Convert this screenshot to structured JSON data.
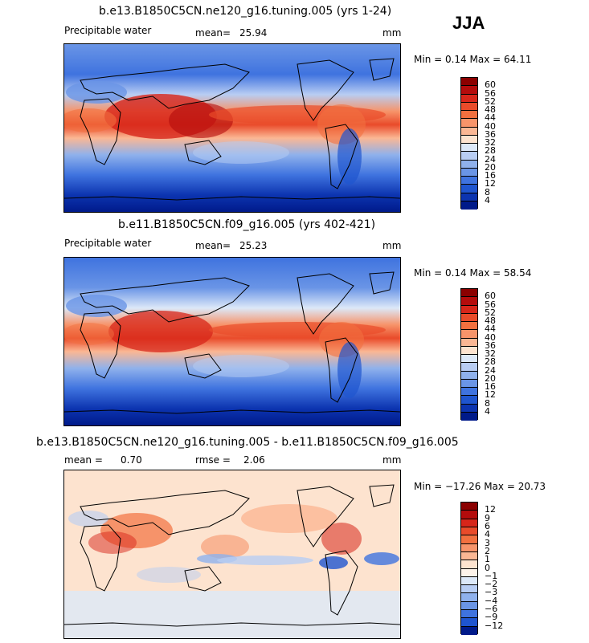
{
  "season": "JJA",
  "panels": [
    {
      "title": "b.e13.B1850C5CN.ne120_g16.tuning.005 (yrs 1-24)",
      "variable": "Precipitable water",
      "mean_label": "mean=",
      "mean_value": "25.94",
      "units": "mm",
      "minmax": "Min =    0.14  Max =   64.11",
      "colorbar_labels": [
        "60",
        "56",
        "52",
        "48",
        "44",
        "40",
        "36",
        "32",
        "28",
        "24",
        "20",
        "16",
        "12",
        "8",
        "4"
      ]
    },
    {
      "title": "b.e11.B1850C5CN.f09_g16.005 (yrs 402-421)",
      "variable": "Precipitable water",
      "mean_label": "mean=",
      "mean_value": "25.23",
      "units": "mm",
      "minmax": "Min =    0.14  Max =   58.54",
      "colorbar_labels": [
        "60",
        "56",
        "52",
        "48",
        "44",
        "40",
        "36",
        "32",
        "28",
        "24",
        "20",
        "16",
        "12",
        "8",
        "4"
      ]
    },
    {
      "title": "b.e13.B1850C5CN.ne120_g16.tuning.005 - b.e11.B1850C5CN.f09_g16.005",
      "mean_label": "mean =",
      "mean_value": "0.70",
      "rmse_label": "rmse =",
      "rmse_value": "2.06",
      "units": "mm",
      "minmax": "Min = −17.26  Max =   20.73",
      "colorbar_labels": [
        "12",
        "9",
        "6",
        "4",
        "3",
        "2",
        "1",
        "0",
        "−1",
        "−2",
        "−3",
        "−4",
        "−6",
        "−9",
        "−12"
      ]
    }
  ],
  "colors": {
    "abs_scale": [
      "#8b0000",
      "#b40c0c",
      "#d7261a",
      "#e94b2a",
      "#f2703f",
      "#f7946a",
      "#fbb794",
      "#fde3cf",
      "#dce8f8",
      "#b8cdf3",
      "#8fb1ec",
      "#6a95e6",
      "#3f73df",
      "#1f55cf",
      "#0c34b0",
      "#001a8a"
    ],
    "diff_scale": [
      "#8b0000",
      "#b40c0c",
      "#d7261a",
      "#e94b2a",
      "#f2703f",
      "#f7946a",
      "#fbb794",
      "#fde3cf",
      "#fdf3ea",
      "#dce8f8",
      "#b8cdf3",
      "#8fb1ec",
      "#6a95e6",
      "#3f73df",
      "#1f55cf",
      "#001a8a"
    ]
  }
}
